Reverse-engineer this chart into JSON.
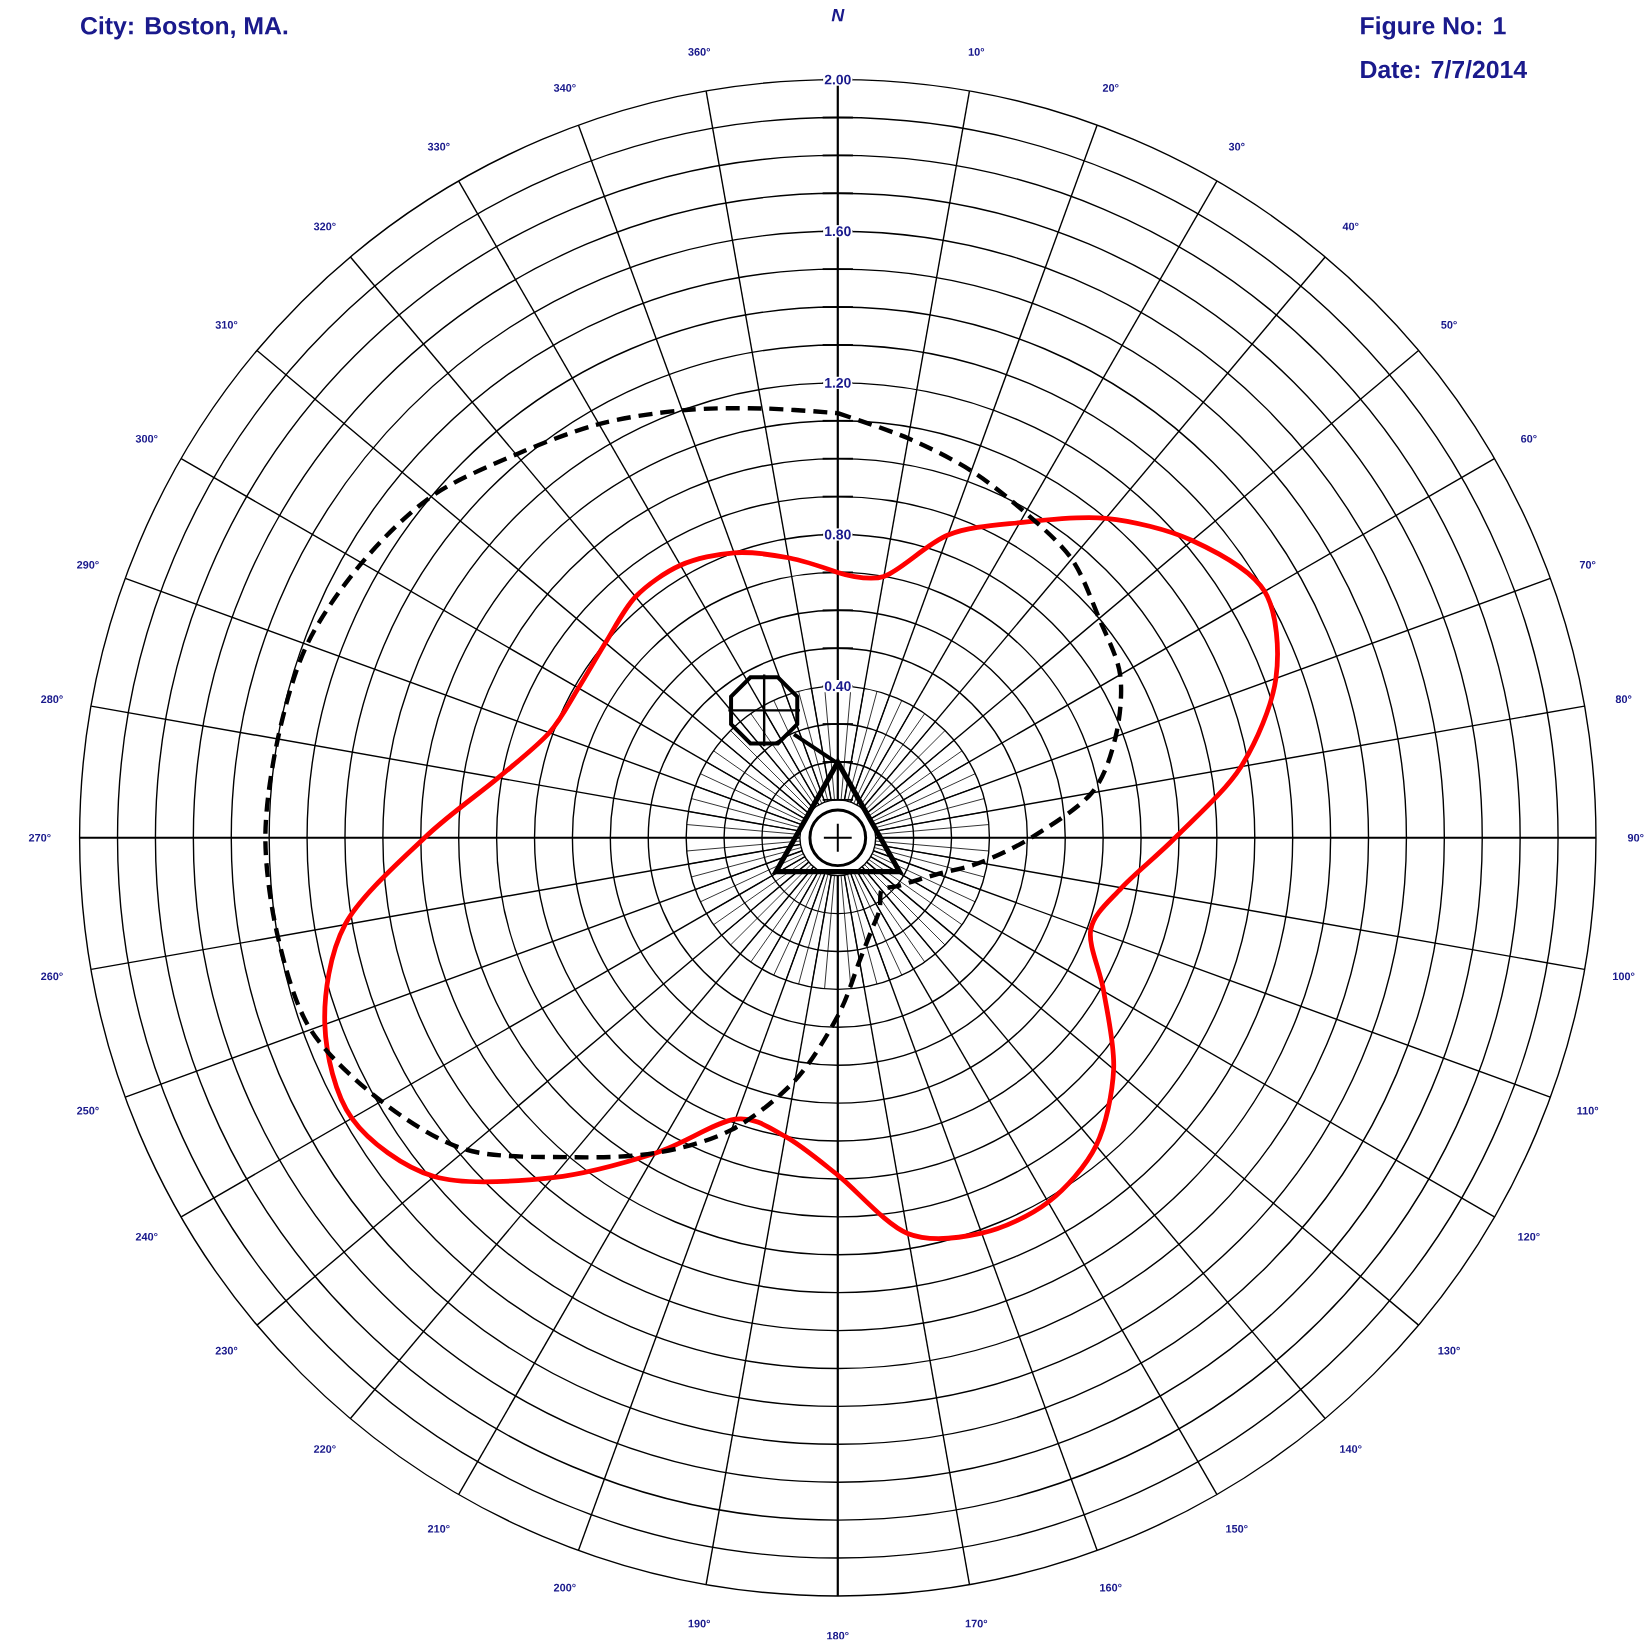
{
  "chart_data": {
    "type": "radar",
    "title": "City: Boston, MA.",
    "annotations": [
      "Figure No: 1",
      "Date: 7/7/2014"
    ],
    "categories": [
      "N",
      "10°",
      "20°",
      "30°",
      "40°",
      "50°",
      "60°",
      "70°",
      "80°",
      "90°",
      "100°",
      "110°",
      "120°",
      "130°",
      "140°",
      "150°",
      "160°",
      "170°",
      "180°",
      "190°",
      "200°",
      "210°",
      "220°",
      "230°",
      "240°",
      "250°",
      "260°",
      "270°",
      "280°",
      "290°",
      "300°",
      "310°",
      "320°",
      "330°",
      "340°",
      "360°"
    ],
    "ylim": [
      0,
      2
    ],
    "yticks": [
      {
        "value": 0.4,
        "label": "0.40"
      },
      {
        "value": 0.8,
        "label": "0.80"
      },
      {
        "value": 1.2,
        "label": "1.20"
      },
      {
        "value": 1.6,
        "label": "1.60"
      },
      {
        "value": 2.0,
        "label": "2.00"
      }
    ],
    "grid": true,
    "series": [
      {
        "color": "#ff0000",
        "line_style": "solid",
        "values": [
          0.7,
          0.7,
          0.85,
          0.96,
          1.1,
          1.22,
          1.3,
          1.23,
          1.08,
          0.89,
          0.76,
          0.71,
          0.81,
          0.95,
          1.06,
          1.11,
          1.11,
          1.06,
          0.89,
          0.8,
          0.79,
          0.96,
          1.17,
          1.39,
          1.48,
          1.44,
          1.32,
          1.09,
          0.91,
          0.81,
          0.79,
          0.8,
          0.83,
          0.83,
          0.8,
          0.75
        ]
      },
      {
        "color": "#000000",
        "line_style": "dashed",
        "values": [
          1.12,
          1.07,
          1.03,
          0.99,
          0.96,
          0.9,
          0.86,
          0.78,
          0.68,
          0.51,
          0.38,
          0.28,
          0.23,
          0.2,
          0.18,
          0.22,
          0.26,
          0.33,
          0.47,
          0.65,
          0.82,
          0.96,
          1.1,
          1.28,
          1.39,
          1.48,
          1.5,
          1.51,
          1.5,
          1.49,
          1.45,
          1.4,
          1.32,
          1.26,
          1.2,
          1.15
        ]
      }
    ]
  }
}
